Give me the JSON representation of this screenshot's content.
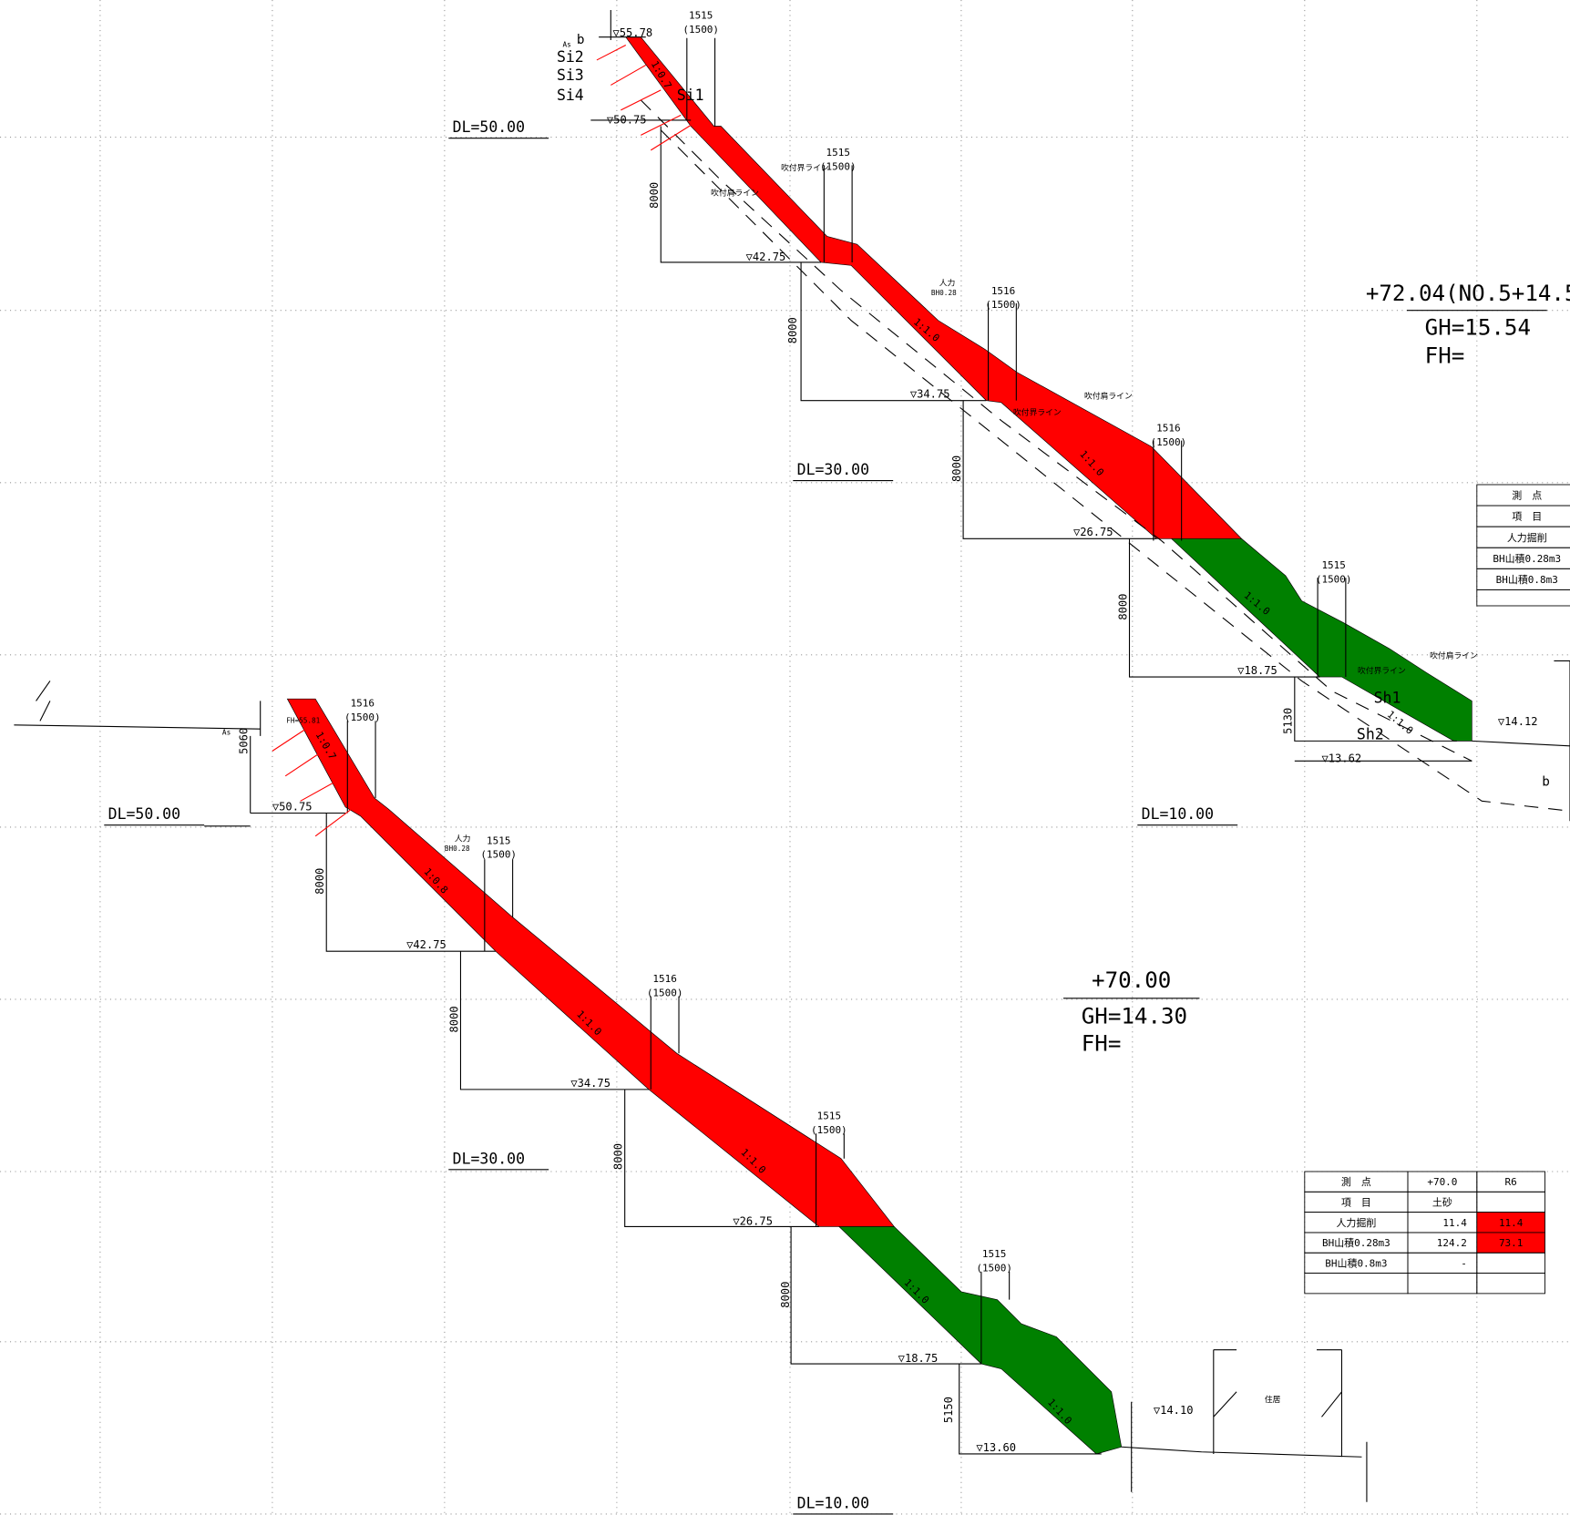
{
  "section_a": {
    "station": "+72.04(NO.5+14.5",
    "gh": "GH=15.54",
    "fh": "FH=",
    "dl": [
      "DL=50.00",
      "DL=30.00",
      "DL=10.00"
    ],
    "elevations": [
      "▽55.78",
      "▽50.75",
      "▽42.75",
      "▽34.75",
      "▽26.75",
      "▽18.75",
      "▽14.12",
      "▽13.62"
    ],
    "heights": [
      "8000",
      "8000",
      "8000",
      "8000",
      "5130"
    ],
    "berms": [
      {
        "width": "1515",
        "design": "(1500)"
      },
      {
        "width": "1515",
        "design": "(1500)"
      },
      {
        "width": "1516",
        "design": "(1500)"
      },
      {
        "width": "1516",
        "design": "(1500)"
      },
      {
        "width": "1515",
        "design": "(1500)"
      }
    ],
    "slopes": [
      "1:0.7",
      "1:1.0",
      "1:1.0",
      "1:1.0",
      "1:1.0"
    ],
    "layers": [
      "Si1",
      "Si2",
      "Si3",
      "Si4",
      "Sh1",
      "Sh2"
    ],
    "notes": [
      "As",
      "b",
      "吹付界ライン",
      "吹付肩ライン",
      "人力",
      "BH0.28",
      "吹付肩ライン",
      "吹付界ライン",
      "吹付肩ライン",
      "吹付界ライン",
      "b"
    ],
    "table": {
      "rows": [
        [
          "測　点"
        ],
        [
          "項　目"
        ],
        [
          "人力掘削"
        ],
        [
          "BH山積0.28m3"
        ],
        [
          "BH山積0.8m3"
        ]
      ]
    }
  },
  "section_b": {
    "station": "+70.00",
    "gh": "GH=14.30",
    "fh": "FH=",
    "dl": [
      "DL=50.00",
      "DL=30.00",
      "DL=10.00"
    ],
    "elevations": [
      "▽50.75",
      "▽42.75",
      "▽34.75",
      "▽26.75",
      "▽18.75",
      "▽14.10",
      "▽13.60"
    ],
    "heights": [
      "5060",
      "8000",
      "8000",
      "8000",
      "8000",
      "5150"
    ],
    "berms": [
      {
        "width": "1516",
        "design": "(1500)"
      },
      {
        "width": "1515",
        "design": "(1500)"
      },
      {
        "width": "1516",
        "design": "(1500)"
      },
      {
        "width": "1515",
        "design": "(1500)"
      },
      {
        "width": "1515",
        "design": "(1500)"
      }
    ],
    "slopes": [
      "1:0.7",
      "1:0.8",
      "1:1.0",
      "1:1.0",
      "1:1.0",
      "1:1.0"
    ],
    "notes": [
      "FH=55.81",
      "As",
      "人力",
      "BH0.28",
      "住居"
    ],
    "table": {
      "rows": [
        [
          "測　点",
          "+70.0",
          "R6"
        ],
        [
          "項　目",
          "土砂",
          ""
        ],
        [
          "人力掘削",
          "11.4",
          "11.4"
        ],
        [
          "BH山積0.28m3",
          "124.2",
          "73.1"
        ],
        [
          "BH山積0.8m3",
          "-",
          ""
        ],
        [
          "",
          "",
          ""
        ]
      ]
    }
  }
}
